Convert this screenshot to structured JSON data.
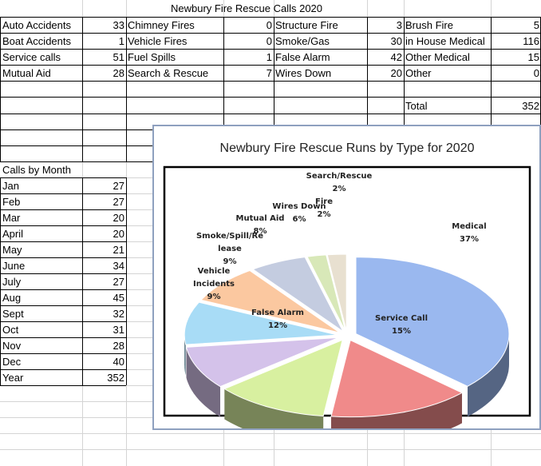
{
  "sheet_title": "Newbury Fire Rescue Calls 2020",
  "call_types": [
    [
      {
        "label": "Auto Accidents",
        "value": "33"
      },
      {
        "label": "Chimney Fires",
        "value": "0"
      },
      {
        "label": "Structure Fire",
        "value": "3"
      },
      {
        "label": "Brush Fire",
        "value": "5"
      }
    ],
    [
      {
        "label": "Boat Accidents",
        "value": "1"
      },
      {
        "label": "Vehicle Fires",
        "value": "0"
      },
      {
        "label": "Smoke/Gas",
        "value": "30"
      },
      {
        "label": "in House Medical",
        "value": "116"
      }
    ],
    [
      {
        "label": "Service calls",
        "value": "51"
      },
      {
        "label": "Fuel Spills",
        "value": "1"
      },
      {
        "label": "False Alarm",
        "value": "42"
      },
      {
        "label": "Other Medical",
        "value": "15"
      }
    ],
    [
      {
        "label": "Mutual Aid",
        "value": "28"
      },
      {
        "label": "Search & Rescue",
        "value": "7"
      },
      {
        "label": "Wires Down",
        "value": "20"
      },
      {
        "label": "Other",
        "value": "0"
      }
    ]
  ],
  "total": {
    "label": "Total",
    "value": "352"
  },
  "calls_by_month": {
    "header": "Calls by Month",
    "rows": [
      {
        "label": "Jan",
        "value": "27"
      },
      {
        "label": "Feb",
        "value": "27"
      },
      {
        "label": "Mar",
        "value": "20"
      },
      {
        "label": "April",
        "value": "20"
      },
      {
        "label": "May",
        "value": "21"
      },
      {
        "label": "June",
        "value": "34"
      },
      {
        "label": "July",
        "value": "27"
      },
      {
        "label": "Aug",
        "value": "45"
      },
      {
        "label": "Sept",
        "value": "32"
      },
      {
        "label": "Oct",
        "value": "31"
      },
      {
        "label": "Nov",
        "value": "28"
      },
      {
        "label": "Dec",
        "value": "40"
      },
      {
        "label": "Year",
        "value": "352"
      }
    ]
  },
  "chart_data": {
    "type": "pie",
    "title": "Newbury Fire Rescue Runs by Type for 2020",
    "style": "3d-exploded",
    "slices": [
      {
        "label": "Medical",
        "percent": "37%",
        "value": 37,
        "color": "#9ab8ef"
      },
      {
        "label": "Service Call",
        "percent": "15%",
        "value": 15,
        "color": "#f08a8a"
      },
      {
        "label": "False Alarm",
        "percent": "12%",
        "value": 12,
        "color": "#d8f0a0"
      },
      {
        "label": "Vehicle Incidents",
        "percent": "9%",
        "value": 9,
        "color": "#d4c2ea"
      },
      {
        "label": "Smoke/Spill/Release",
        "percent": "9%",
        "value": 9,
        "color": "#a8dcf6"
      },
      {
        "label": "Mutual Aid",
        "percent": "8%",
        "value": 8,
        "color": "#fbc8a0"
      },
      {
        "label": "Wires Down",
        "percent": "6%",
        "value": 6,
        "color": "#c4cce0"
      },
      {
        "label": "Fire",
        "percent": "2%",
        "value": 2,
        "color": "#d8e8b8"
      },
      {
        "label": "Search/Rescue",
        "percent": "2%",
        "value": 2,
        "color": "#e8e0d0"
      }
    ],
    "legend": "none"
  }
}
